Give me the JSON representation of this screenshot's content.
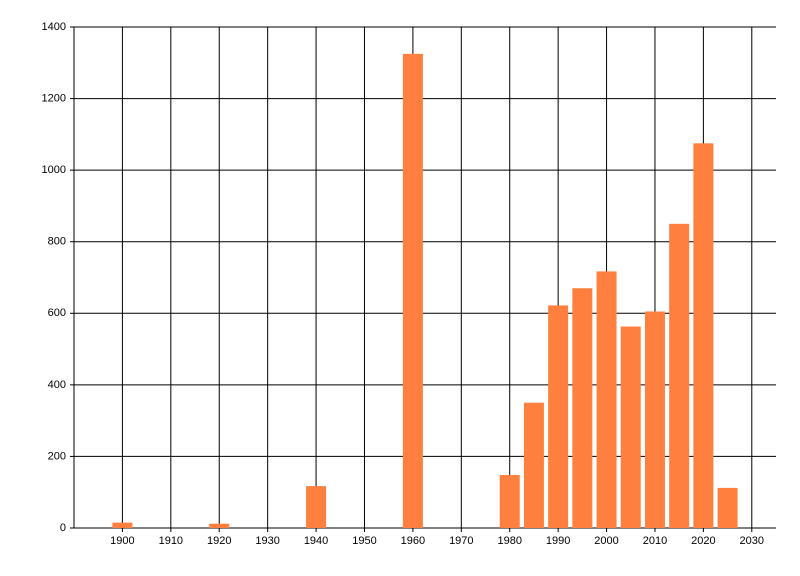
{
  "chart_data": {
    "type": "bar",
    "x": [
      1900,
      1920,
      1940,
      1960,
      1980,
      1985,
      1990,
      1995,
      2000,
      2005,
      2010,
      2015,
      2020,
      2025
    ],
    "values": [
      15,
      12,
      117,
      1325,
      148,
      350,
      622,
      670,
      717,
      563,
      605,
      850,
      1075,
      112
    ],
    "color": "#ff7f3f",
    "xlim": [
      1890,
      2035
    ],
    "xticks": [
      1900,
      1910,
      1920,
      1930,
      1940,
      1950,
      1960,
      1970,
      1980,
      1990,
      2000,
      2010,
      2020,
      2030
    ],
    "ylim": [
      0,
      1400
    ],
    "yticks": [
      0,
      200,
      400,
      600,
      800,
      1000,
      1200,
      1400
    ],
    "grid": true
  }
}
